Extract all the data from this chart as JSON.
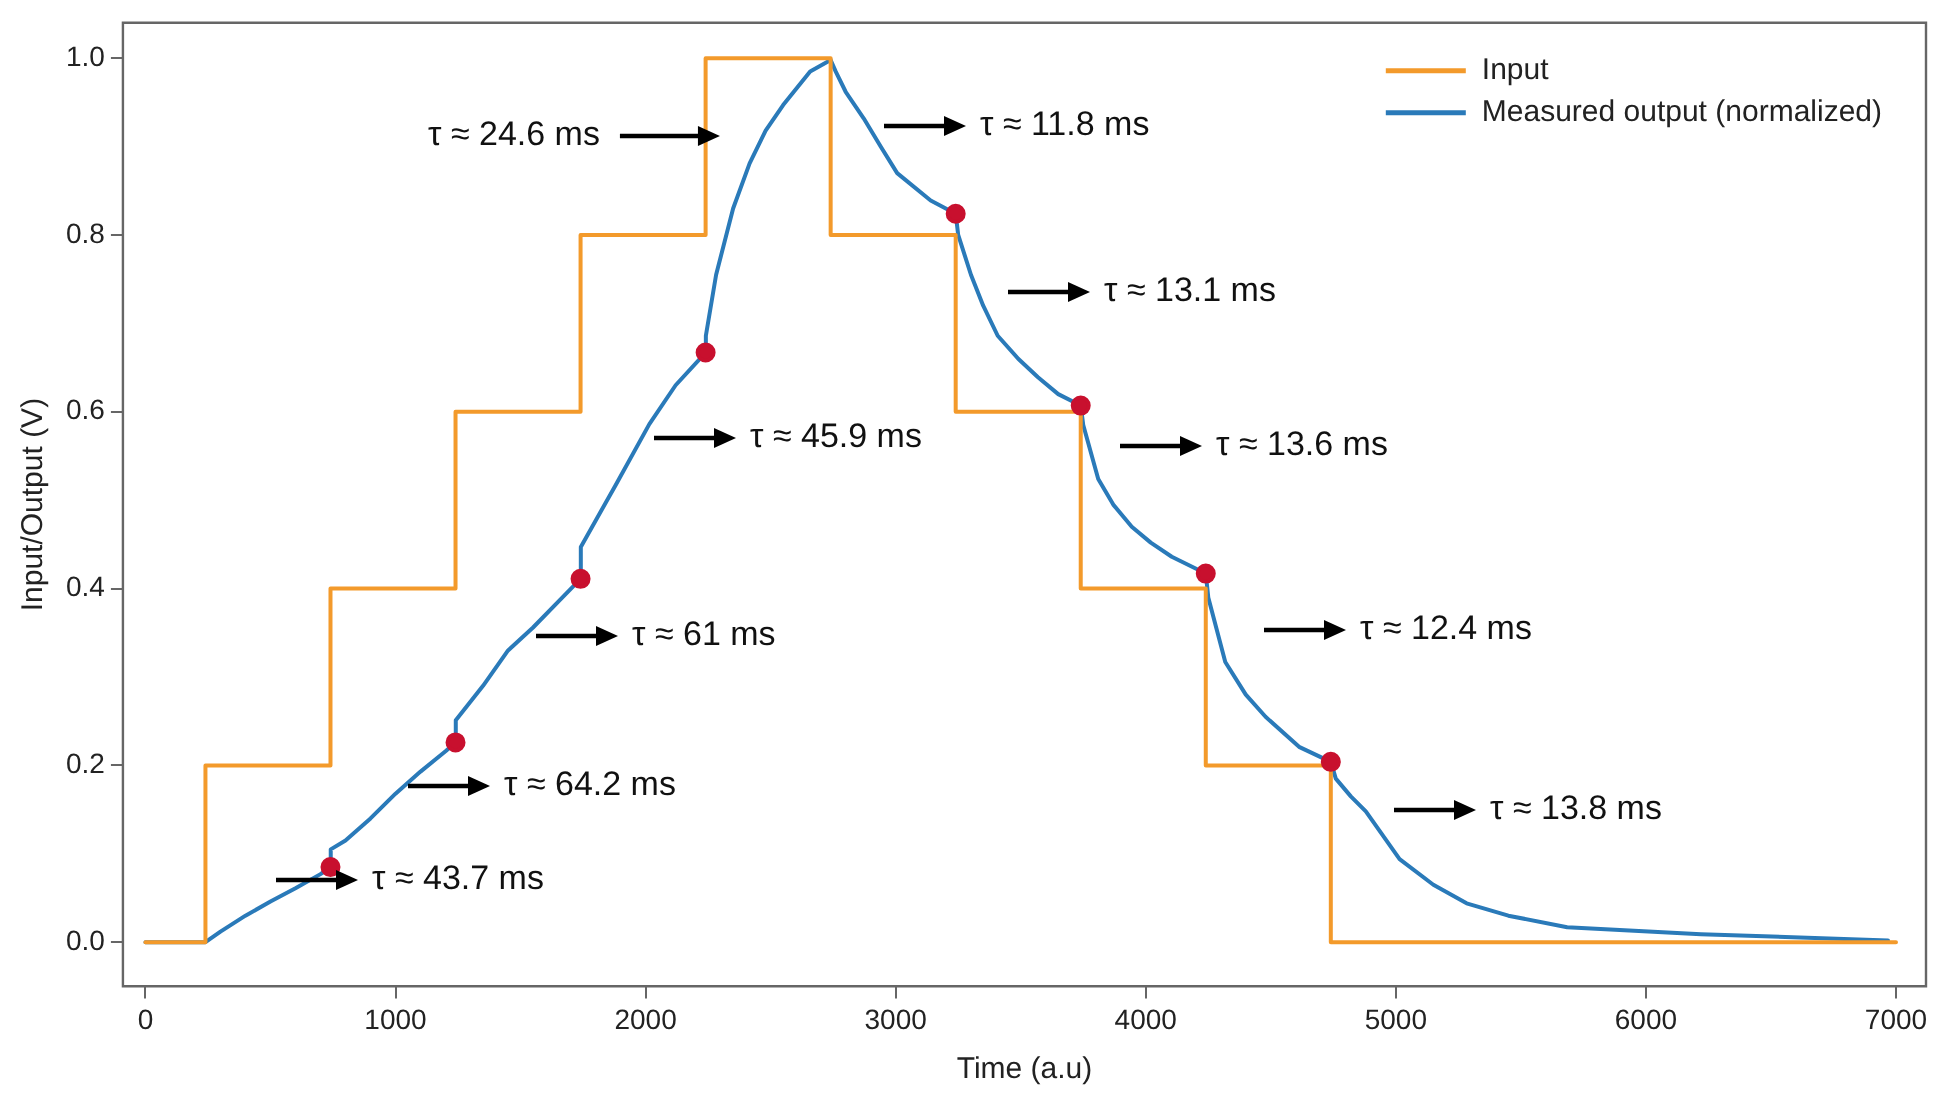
{
  "chart_data": {
    "type": "line",
    "xlabel": "Time (a.u)",
    "ylabel": "Input/Output (V)",
    "xlim": [
      -90,
      7120
    ],
    "ylim": [
      -0.05,
      1.04
    ],
    "xticks": [
      0,
      1000,
      2000,
      3000,
      4000,
      5000,
      6000,
      7000
    ],
    "yticks": [
      {
        "value": 0,
        "label": "0.0"
      },
      {
        "value": 0.2,
        "label": "0.2"
      },
      {
        "value": 0.4,
        "label": "0.4"
      },
      {
        "value": 0.6,
        "label": "0.6"
      },
      {
        "value": 0.8,
        "label": "0.8"
      },
      {
        "value": 1,
        "label": "1.0"
      }
    ],
    "grid": false,
    "legend": "top right",
    "line_style": "solid",
    "marker": "none",
    "series": [
      {
        "name": "Input",
        "type": "step",
        "color": "#f39a2b",
        "x": [
          0,
          240,
          740,
          1240,
          1740,
          2240,
          2740,
          3240,
          3740,
          4240,
          4740,
          7000
        ],
        "values": [
          0,
          0.2,
          0.4,
          0.6,
          0.8,
          1.0,
          0.8,
          0.6,
          0.4,
          0.2,
          0,
          0
        ]
      },
      {
        "name": "Measured output (normalized)",
        "color": "#2a7ab9",
        "x": [
          0,
          240,
          300,
          400,
          500,
          600,
          700,
          740,
          741,
          800,
          900,
          1000,
          1100,
          1200,
          1240,
          1241,
          1350,
          1450,
          1550,
          1650,
          1740,
          1741,
          1880,
          2015,
          2120,
          2240,
          2241,
          2282,
          2350,
          2416,
          2480,
          2550,
          2658,
          2740,
          2760,
          2800,
          2872,
          2940,
          3006,
          3140,
          3240,
          3250,
          3301,
          3350,
          3408,
          3490,
          3569,
          3650,
          3740,
          3750,
          3810,
          3870,
          3944,
          4020,
          4104,
          4240,
          4250,
          4318,
          4400,
          4479,
          4613,
          4740,
          4760,
          4820,
          4880,
          5015,
          5150,
          5283,
          5450,
          5685,
          6220,
          6968
        ],
        "values": [
          0,
          0,
          0.012,
          0.03,
          0.046,
          0.061,
          0.077,
          0.085,
          0.105,
          0.115,
          0.14,
          0.168,
          0.193,
          0.216,
          0.226,
          0.251,
          0.29,
          0.33,
          0.356,
          0.385,
          0.411,
          0.447,
          0.517,
          0.586,
          0.63,
          0.667,
          0.686,
          0.755,
          0.83,
          0.881,
          0.918,
          0.947,
          0.985,
          0.998,
          0.985,
          0.962,
          0.932,
          0.9,
          0.87,
          0.839,
          0.824,
          0.8,
          0.755,
          0.72,
          0.686,
          0.66,
          0.639,
          0.62,
          0.607,
          0.585,
          0.524,
          0.495,
          0.47,
          0.452,
          0.436,
          0.417,
          0.39,
          0.317,
          0.28,
          0.255,
          0.221,
          0.204,
          0.185,
          0.165,
          0.148,
          0.094,
          0.065,
          0.044,
          0.03,
          0.017,
          0.009,
          0.002
        ]
      },
      {
        "type": "scatter",
        "color": "#c8102e",
        "marker": "circle",
        "x": [
          740,
          1240,
          1740,
          2240,
          3240,
          3740,
          4240,
          4740
        ],
        "values": [
          0.085,
          0.226,
          0.411,
          0.667,
          0.824,
          0.607,
          0.417,
          0.204
        ]
      }
    ],
    "annotations": [
      "τ ≈ 24.6 ms",
      "τ ≈ 11.8 ms",
      "τ ≈ 45.9 ms",
      "τ ≈ 61 ms",
      "τ ≈ 64.2 ms",
      "τ ≈ 43.7 ms",
      "τ ≈ 13.1 ms",
      "τ ≈ 13.6 ms",
      "τ ≈ 12.4 ms",
      "τ ≈ 13.8 ms"
    ]
  }
}
